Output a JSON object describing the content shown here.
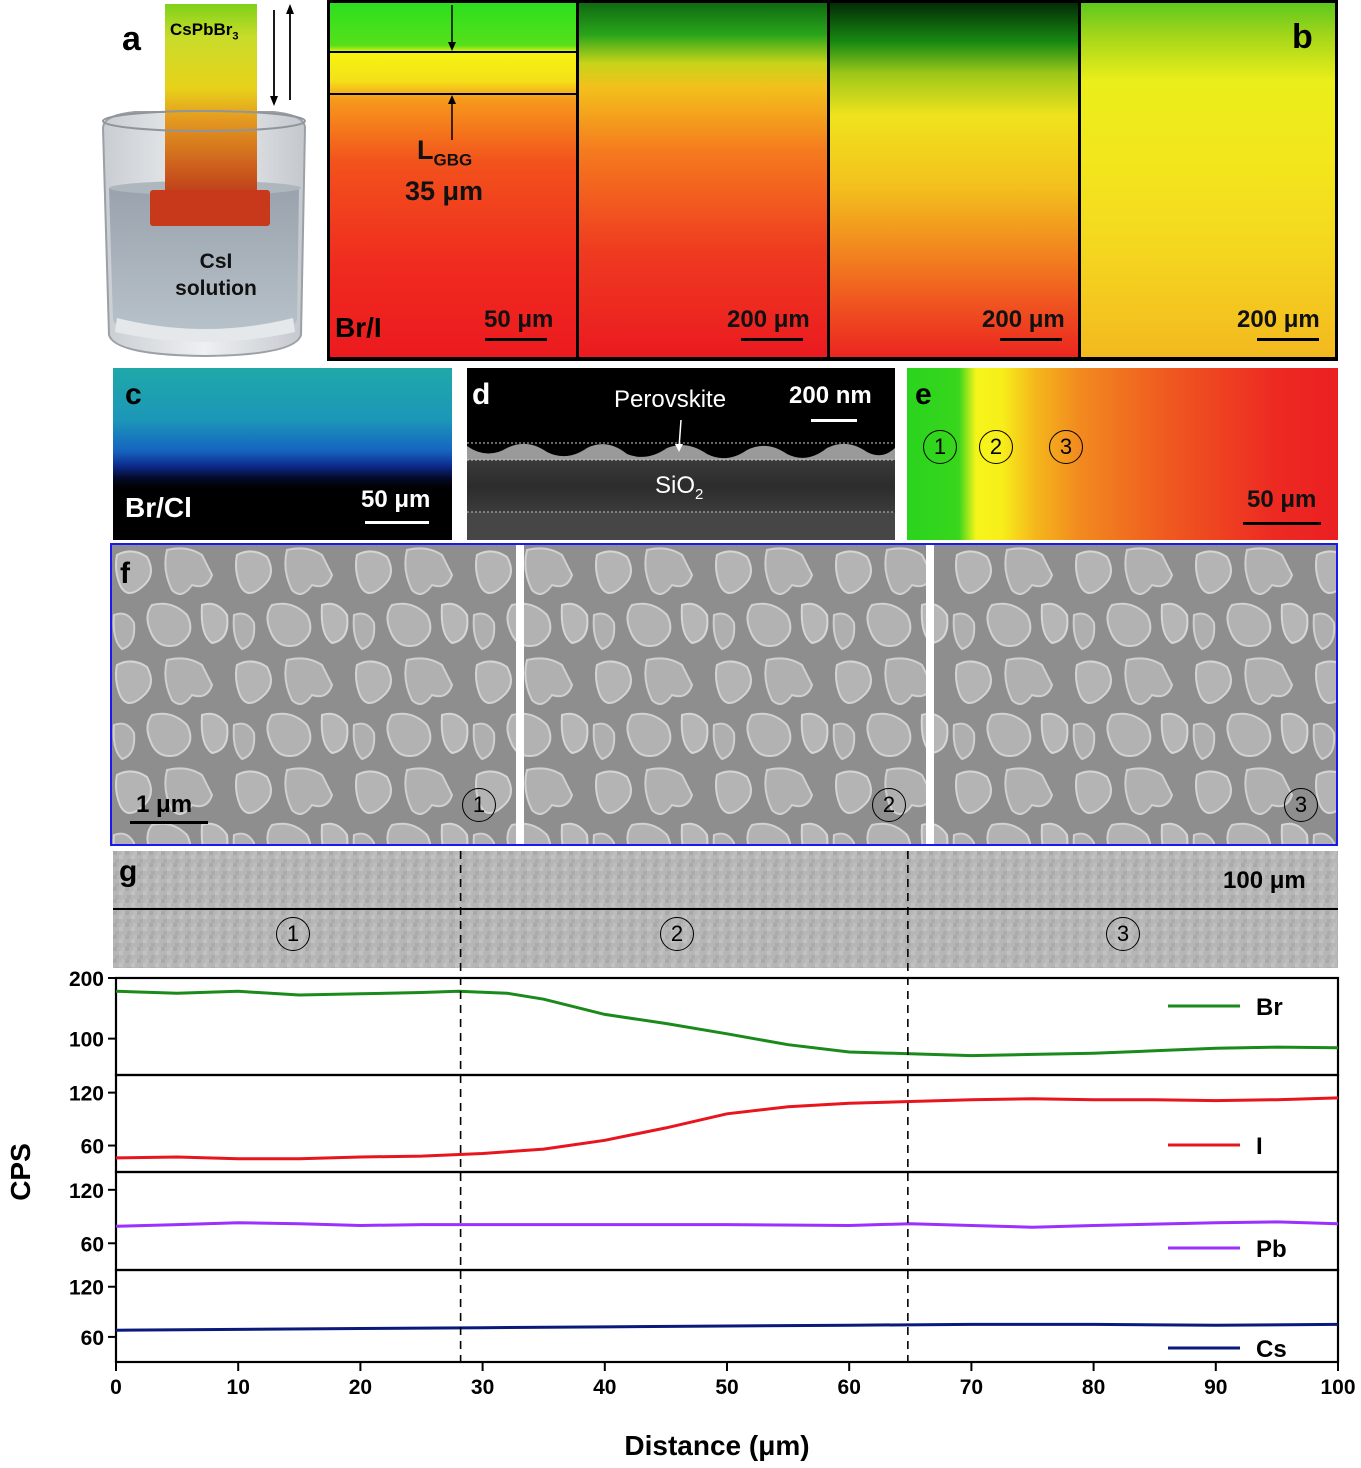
{
  "panel_a": {
    "label": "a",
    "crystal_label": "CsPbBr",
    "crystal_label_sub": "3",
    "solution_label_line1": "CsI",
    "solution_label_line2": "solution"
  },
  "panel_b": {
    "label": "b",
    "region_label": "Br/I",
    "lgbg_main": "L",
    "lgbg_sub": "GBG",
    "lgbg_value": "35 μm",
    "scalebars": [
      "50 μm",
      "200 μm",
      "200 μm",
      "200 μm"
    ]
  },
  "panel_c": {
    "label": "c",
    "region_label": "Br/Cl",
    "scalebar": "50 μm"
  },
  "panel_d": {
    "label": "d",
    "layer_top": "Perovskite",
    "layer_bottom": "SiO",
    "layer_bottom_sub": "2",
    "scalebar": "200 nm"
  },
  "panel_e": {
    "label": "e",
    "markers": [
      "1",
      "2",
      "3"
    ],
    "scalebar": "50 μm"
  },
  "panel_f": {
    "label": "f",
    "scalebar": "1 μm",
    "markers": [
      "1",
      "2",
      "3"
    ]
  },
  "panel_g": {
    "label": "g",
    "scalebar": "100 μm",
    "markers": [
      "1",
      "2",
      "3"
    ]
  },
  "colors": {
    "Br": "#1a8a1a",
    "I": "#e8141e",
    "Pb": "#9b30ff",
    "Cs": "#0a1a7a",
    "frame_f": "#1a1aee"
  },
  "chart_data": {
    "type": "line",
    "xlabel": "Distance (μm)",
    "ylabel": "CPS",
    "xlim": [
      0,
      100
    ],
    "xticks": [
      0,
      10,
      20,
      30,
      40,
      50,
      60,
      70,
      80,
      90,
      100
    ],
    "dividers_x": [
      28.2,
      64.8
    ],
    "subplots": [
      {
        "name": "Br",
        "ylim": [
          40,
          200
        ],
        "yticks": [
          100,
          200
        ],
        "x": [
          0,
          5,
          10,
          15,
          20,
          25,
          28,
          32,
          35,
          40,
          45,
          50,
          55,
          60,
          65,
          70,
          75,
          80,
          85,
          90,
          95,
          100
        ],
        "y": [
          178,
          175,
          178,
          172,
          174,
          176,
          178,
          175,
          165,
          140,
          125,
          108,
          90,
          78,
          75,
          72,
          74,
          76,
          80,
          84,
          86,
          85
        ]
      },
      {
        "name": "I",
        "ylim": [
          30,
          140
        ],
        "yticks": [
          60,
          120
        ],
        "x": [
          0,
          5,
          10,
          15,
          20,
          25,
          30,
          35,
          40,
          45,
          50,
          55,
          60,
          65,
          70,
          75,
          80,
          85,
          90,
          95,
          100
        ],
        "y": [
          46,
          47,
          45,
          45,
          47,
          48,
          51,
          56,
          66,
          80,
          96,
          104,
          108,
          110,
          112,
          113,
          112,
          112,
          111,
          112,
          114
        ]
      },
      {
        "name": "Pb",
        "ylim": [
          30,
          140
        ],
        "yticks": [
          60,
          120
        ],
        "x": [
          0,
          5,
          10,
          15,
          20,
          25,
          30,
          40,
          50,
          60,
          65,
          70,
          75,
          80,
          90,
          95,
          100
        ],
        "y": [
          79,
          81,
          83,
          82,
          80,
          81,
          81,
          81,
          81,
          80,
          82,
          80,
          78,
          80,
          83,
          84,
          82
        ]
      },
      {
        "name": "Cs",
        "ylim": [
          30,
          140
        ],
        "yticks": [
          60,
          120
        ],
        "x": [
          0,
          10,
          20,
          30,
          40,
          50,
          60,
          70,
          80,
          90,
          100
        ],
        "y": [
          68,
          69,
          70,
          71,
          72,
          73,
          74,
          75,
          75,
          74,
          75
        ]
      }
    ]
  }
}
